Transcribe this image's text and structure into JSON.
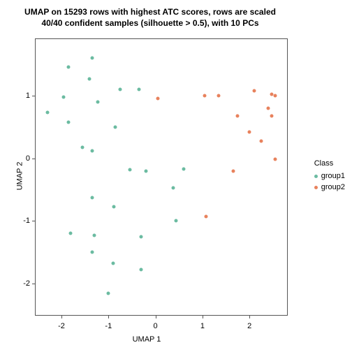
{
  "chart": {
    "type": "scatter",
    "title_line1": "UMAP on 15293 rows with highest ATC scores, rows are scaled",
    "title_line2": "40/40 confident samples (silhouette > 0.5), with 10 PCs",
    "title_fontsize": 12,
    "xlabel": "UMAP 1",
    "ylabel": "UMAP 2",
    "label_fontsize": 11,
    "xlim": [
      -2.55,
      2.8
    ],
    "ylim": [
      -2.5,
      1.9
    ],
    "xticks": [
      -2,
      -1,
      0,
      1,
      2
    ],
    "yticks": [
      -2,
      -1,
      0,
      1
    ],
    "background_color": "#ffffff",
    "border_color": "#555555",
    "marker_size": 5,
    "legend": {
      "title": "Class",
      "position": "right",
      "items": [
        {
          "label": "group1",
          "color": "#6bbba1"
        },
        {
          "label": "group2",
          "color": "#e8825d"
        }
      ]
    },
    "series": [
      {
        "name": "group1",
        "color": "#6bbba1",
        "points": [
          {
            "x": -1.35,
            "y": 1.6
          },
          {
            "x": -1.85,
            "y": 1.45
          },
          {
            "x": -1.4,
            "y": 1.27
          },
          {
            "x": -0.75,
            "y": 1.1
          },
          {
            "x": -0.35,
            "y": 1.1
          },
          {
            "x": -1.95,
            "y": 0.97
          },
          {
            "x": -1.22,
            "y": 0.9
          },
          {
            "x": -2.3,
            "y": 0.73
          },
          {
            "x": -1.85,
            "y": 0.57
          },
          {
            "x": -0.85,
            "y": 0.5
          },
          {
            "x": -1.55,
            "y": 0.17
          },
          {
            "x": -1.35,
            "y": 0.12
          },
          {
            "x": -0.55,
            "y": -0.18
          },
          {
            "x": -0.2,
            "y": -0.2
          },
          {
            "x": 0.6,
            "y": -0.17
          },
          {
            "x": 0.38,
            "y": -0.47
          },
          {
            "x": -1.35,
            "y": -0.63
          },
          {
            "x": -0.88,
            "y": -0.77
          },
          {
            "x": 0.43,
            "y": -1.0
          },
          {
            "x": -1.8,
            "y": -1.2
          },
          {
            "x": -1.3,
            "y": -1.23
          },
          {
            "x": -0.3,
            "y": -1.25
          },
          {
            "x": -1.35,
            "y": -1.5
          },
          {
            "x": -0.9,
            "y": -1.68
          },
          {
            "x": -0.3,
            "y": -1.78
          },
          {
            "x": -1.0,
            "y": -2.15
          }
        ]
      },
      {
        "name": "group2",
        "color": "#e8825d",
        "points": [
          {
            "x": 0.05,
            "y": 0.95
          },
          {
            "x": 1.05,
            "y": 1.0
          },
          {
            "x": 1.35,
            "y": 1.0
          },
          {
            "x": 2.1,
            "y": 1.08
          },
          {
            "x": 2.47,
            "y": 1.02
          },
          {
            "x": 2.55,
            "y": 1.0
          },
          {
            "x": 2.4,
            "y": 0.8
          },
          {
            "x": 2.48,
            "y": 0.68
          },
          {
            "x": 1.75,
            "y": 0.67
          },
          {
            "x": 2.0,
            "y": 0.42
          },
          {
            "x": 2.25,
            "y": 0.27
          },
          {
            "x": 2.55,
            "y": -0.02
          },
          {
            "x": 1.65,
            "y": -0.2
          },
          {
            "x": 1.08,
            "y": -0.93
          }
        ]
      }
    ]
  }
}
